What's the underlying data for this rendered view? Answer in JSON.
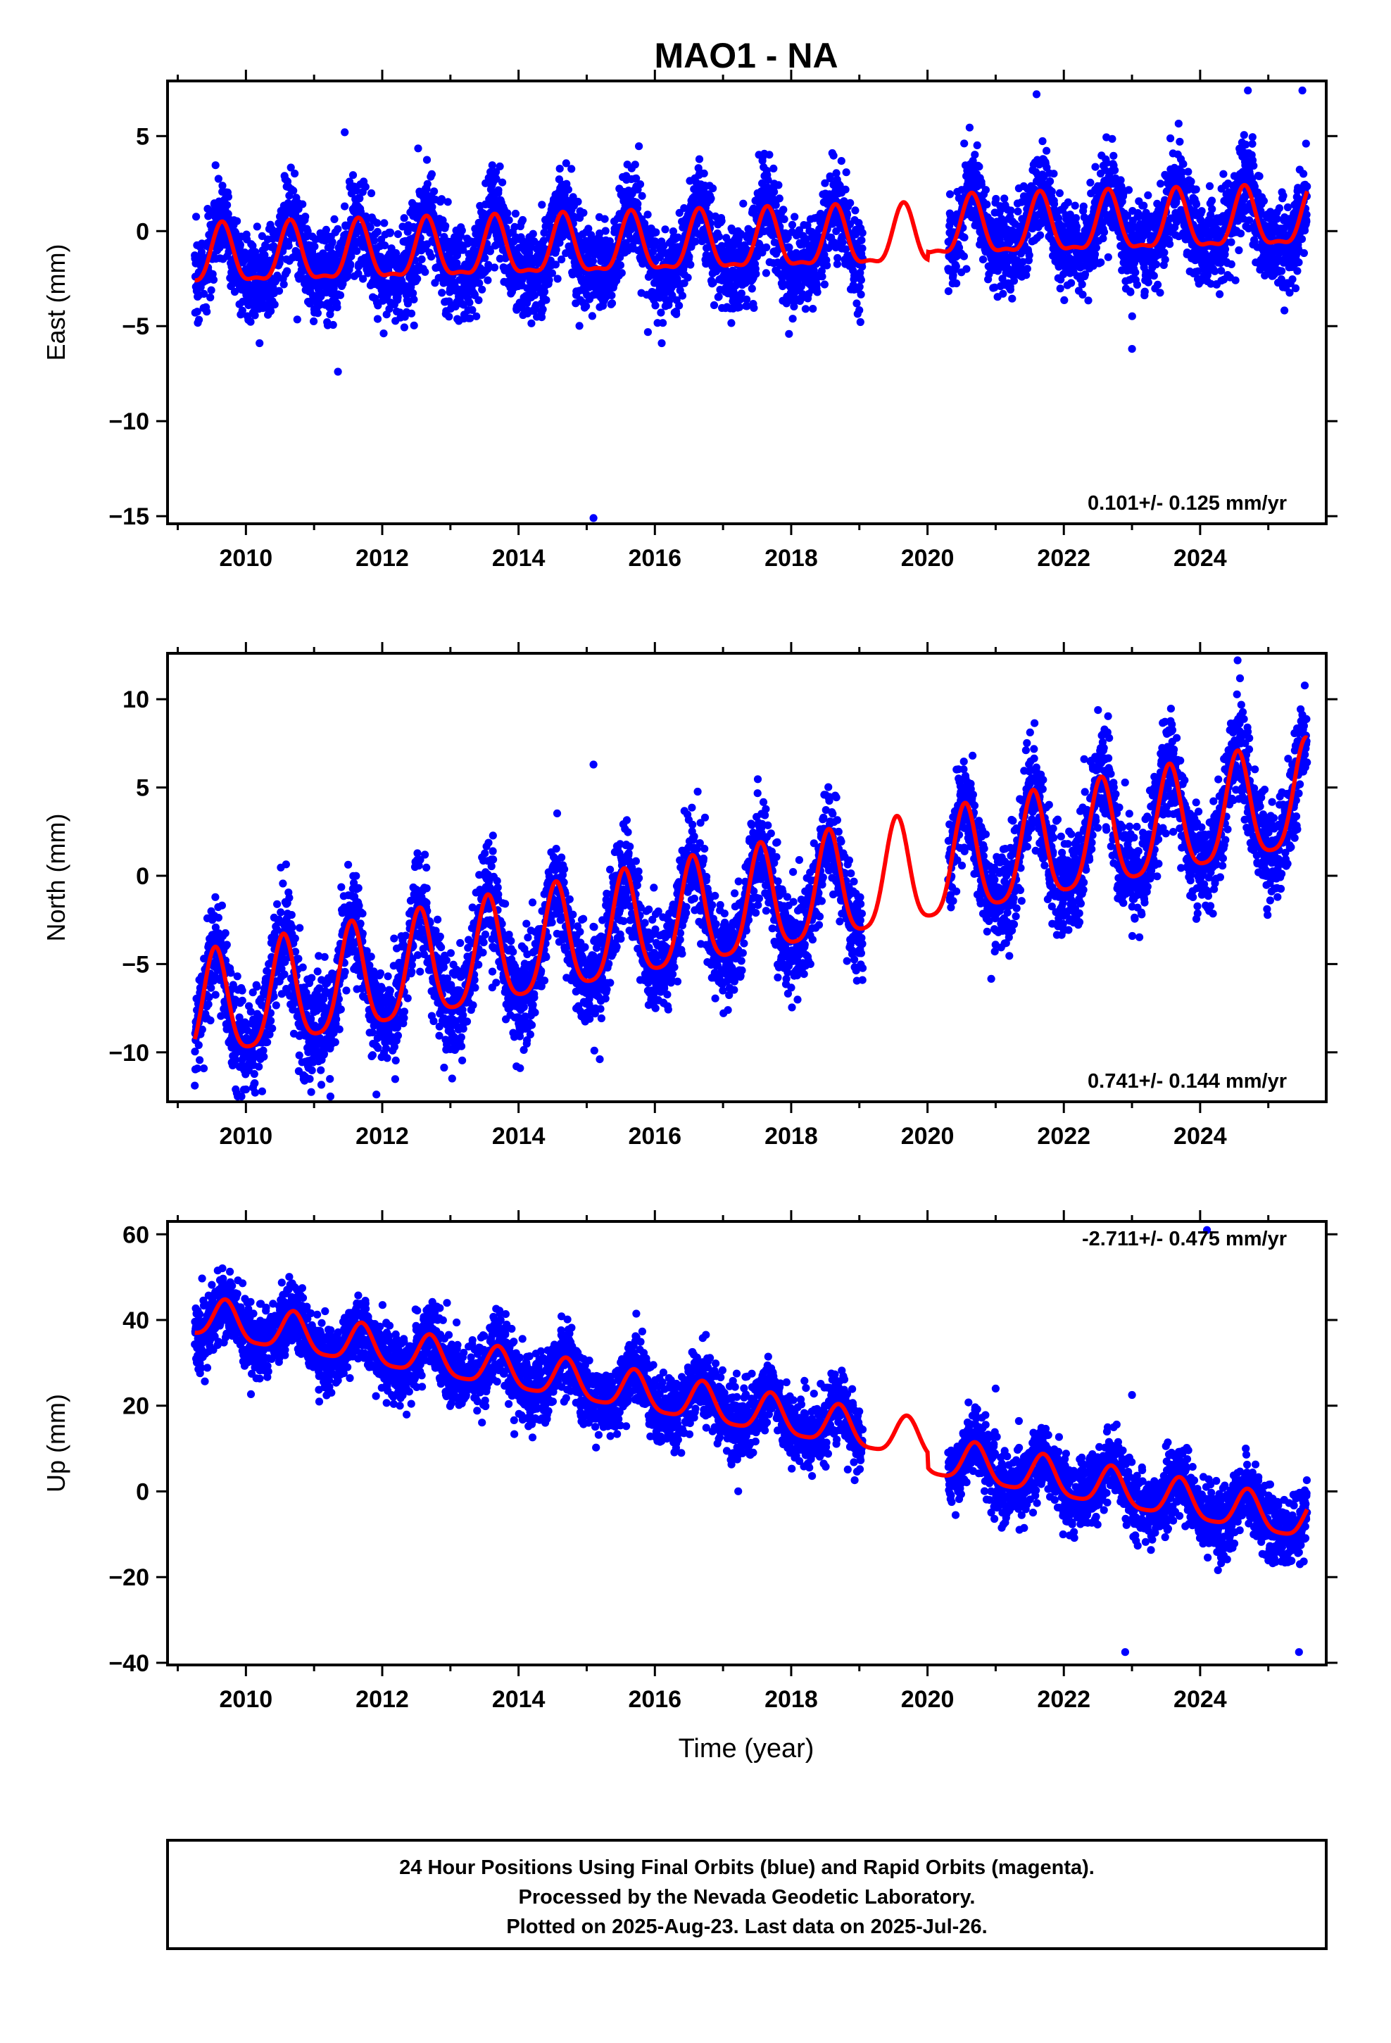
{
  "figure": {
    "title": "MAO1 - NA",
    "xlabel": "Time (year)",
    "caption": [
      "24 Hour Positions Using Final Orbits (blue) and Rapid Orbits (magenta).",
      "Processed by the Nevada Geodetic Laboratory.",
      "Plotted on 2025-Aug-23. Last data on 2025-Jul-26."
    ],
    "colors": {
      "data": "#0000ff",
      "model": "#ff0000",
      "frame": "#000000",
      "background": "#ffffff"
    }
  },
  "chart_data": [
    {
      "type": "scatter",
      "panel": "east",
      "ylabel": "East (mm)",
      "rate_label": "0.101+/- 0.125 mm/yr",
      "xlim": [
        2008.85,
        2025.85
      ],
      "ylim": [
        -15.4,
        7.9
      ],
      "xticks": [
        2010,
        2012,
        2014,
        2016,
        2018,
        2020,
        2022,
        2024
      ],
      "yticks": [
        5,
        0,
        -5,
        -10,
        -15
      ],
      "data_range": [
        2009.25,
        2025.57
      ],
      "gap": [
        2019.05,
        2020.3
      ],
      "series": [
        {
          "name": "Final Orbits",
          "color": "#0000ff",
          "model": {
            "rate": 0.101,
            "offset": -0.75,
            "offset_after_2020": 0.4,
            "annual_amp": 1.5,
            "annual_peak": 2009.65,
            "semiannual_amp": 0.5,
            "noise_sd": 1.2
          }
        },
        {
          "name": "Model fit",
          "color": "#ff0000"
        }
      ],
      "outliers": [
        [
          2011.35,
          -7.4
        ],
        [
          2015.1,
          -15.1
        ],
        [
          2011.45,
          5.2
        ],
        [
          2021.6,
          7.2
        ],
        [
          2024.7,
          7.4
        ],
        [
          2025.5,
          7.4
        ],
        [
          2023.0,
          -6.2
        ],
        [
          2016.1,
          -5.9
        ],
        [
          2010.2,
          -5.9
        ]
      ],
      "grid": false,
      "legend": "none"
    },
    {
      "type": "scatter",
      "panel": "north",
      "ylabel": "North (mm)",
      "rate_label": "0.741+/- 0.144 mm/yr",
      "xlim": [
        2008.85,
        2025.85
      ],
      "ylim": [
        -12.8,
        12.6
      ],
      "xticks": [
        2010,
        2012,
        2014,
        2016,
        2018,
        2020,
        2022,
        2024
      ],
      "yticks": [
        10,
        5,
        0,
        -5,
        -10
      ],
      "data_range": [
        2009.25,
        2025.57
      ],
      "gap": [
        2019.05,
        2020.3
      ],
      "series": [
        {
          "name": "Final Orbits",
          "color": "#0000ff",
          "model": {
            "rate": 0.741,
            "offset": -2.1,
            "offset_after_2020": 0.0,
            "annual_amp": 3.0,
            "annual_peak": 2009.55,
            "semiannual_amp": 0.6,
            "noise_sd": 1.4
          }
        },
        {
          "name": "Model fit",
          "color": "#ff0000"
        }
      ],
      "outliers": [
        [
          2024.55,
          12.2
        ],
        [
          2015.1,
          6.3
        ],
        [
          2009.85,
          -12.1
        ]
      ],
      "grid": false,
      "legend": "none"
    },
    {
      "type": "scatter",
      "panel": "up",
      "ylabel": "Up (mm)",
      "rate_label": "-2.711+/- 0.475 mm/yr",
      "xlim": [
        2008.85,
        2025.85
      ],
      "ylim": [
        -40.5,
        63
      ],
      "xticks": [
        2010,
        2012,
        2014,
        2016,
        2018,
        2020,
        2022,
        2024
      ],
      "yticks": [
        60,
        40,
        20,
        0,
        -20,
        -40
      ],
      "data_range": [
        2009.25,
        2025.57
      ],
      "gap": [
        2019.05,
        2020.3
      ],
      "series": [
        {
          "name": "Final Orbits",
          "color": "#0000ff",
          "model": {
            "rate": -2.711,
            "offset": 19.5,
            "offset_after_2020": -3.5,
            "annual_amp": 4.5,
            "annual_peak": 2009.7,
            "semiannual_amp": 1.0,
            "noise_sd": 4.0
          }
        },
        {
          "name": "Model fit",
          "color": "#ff0000"
        }
      ],
      "outliers": [
        [
          2024.1,
          61
        ],
        [
          2012.95,
          44
        ],
        [
          2021.0,
          24
        ],
        [
          2023.0,
          22.5
        ],
        [
          2017.2,
          27.5
        ],
        [
          2022.9,
          -37.5
        ],
        [
          2025.45,
          -37.5
        ]
      ],
      "grid": false,
      "legend": "none"
    }
  ]
}
